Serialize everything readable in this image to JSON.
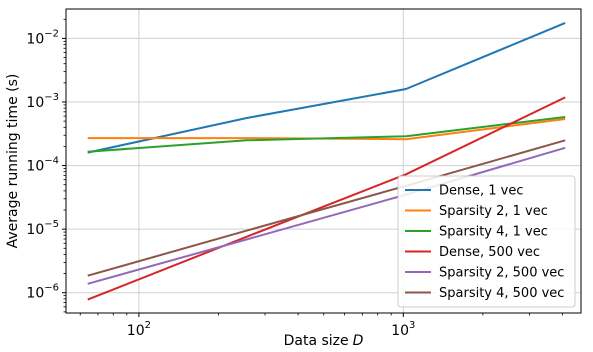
{
  "chart_data": {
    "type": "line",
    "title": "",
    "xlabel": "Data size",
    "xlabel_italic": "D",
    "ylabel": "Average running time (s)",
    "x_scale": "log",
    "y_scale": "log",
    "xlim": [
      53,
      4700
    ],
    "ylim": [
      4.8e-07,
      0.029
    ],
    "x": [
      64,
      256,
      1024,
      4096
    ],
    "x_ticks": [
      {
        "value": 100,
        "base": "10",
        "exp": "2"
      },
      {
        "value": 1000,
        "base": "10",
        "exp": "3"
      }
    ],
    "y_ticks": [
      {
        "value": 1e-06,
        "base": "10",
        "exp": "−6"
      },
      {
        "value": 1e-05,
        "base": "10",
        "exp": "−5"
      },
      {
        "value": 0.0001,
        "base": "10",
        "exp": "−4"
      },
      {
        "value": 0.001,
        "base": "10",
        "exp": "−3"
      },
      {
        "value": 0.01,
        "base": "10",
        "exp": "−2"
      }
    ],
    "grid": true,
    "legend_position": "lower-right",
    "series": [
      {
        "name": "Dense, 1 vec",
        "color": "#1f77b4",
        "values": [
          0.00016,
          0.00056,
          0.0016,
          0.0175
        ]
      },
      {
        "name": "Sparsity 2, 1 vec",
        "color": "#ff7f0e",
        "values": [
          0.00027,
          0.00027,
          0.00026,
          0.00054
        ]
      },
      {
        "name": "Sparsity 4, 1 vec",
        "color": "#2ca02c",
        "values": [
          0.000165,
          0.00025,
          0.00029,
          0.00058
        ]
      },
      {
        "name": "Dense, 500 vec",
        "color": "#d62728",
        "values": [
          7.8e-07,
          7.6e-06,
          7.3e-05,
          0.00118
        ]
      },
      {
        "name": "Sparsity 2, 500 vec",
        "color": "#9467bd",
        "values": [
          1.38e-06,
          6.9e-06,
          3.5e-05,
          0.00019
        ]
      },
      {
        "name": "Sparsity 4, 500 vec",
        "color": "#8c564b",
        "values": [
          1.85e-06,
          9.5e-06,
          4.8e-05,
          0.00025
        ]
      }
    ]
  }
}
